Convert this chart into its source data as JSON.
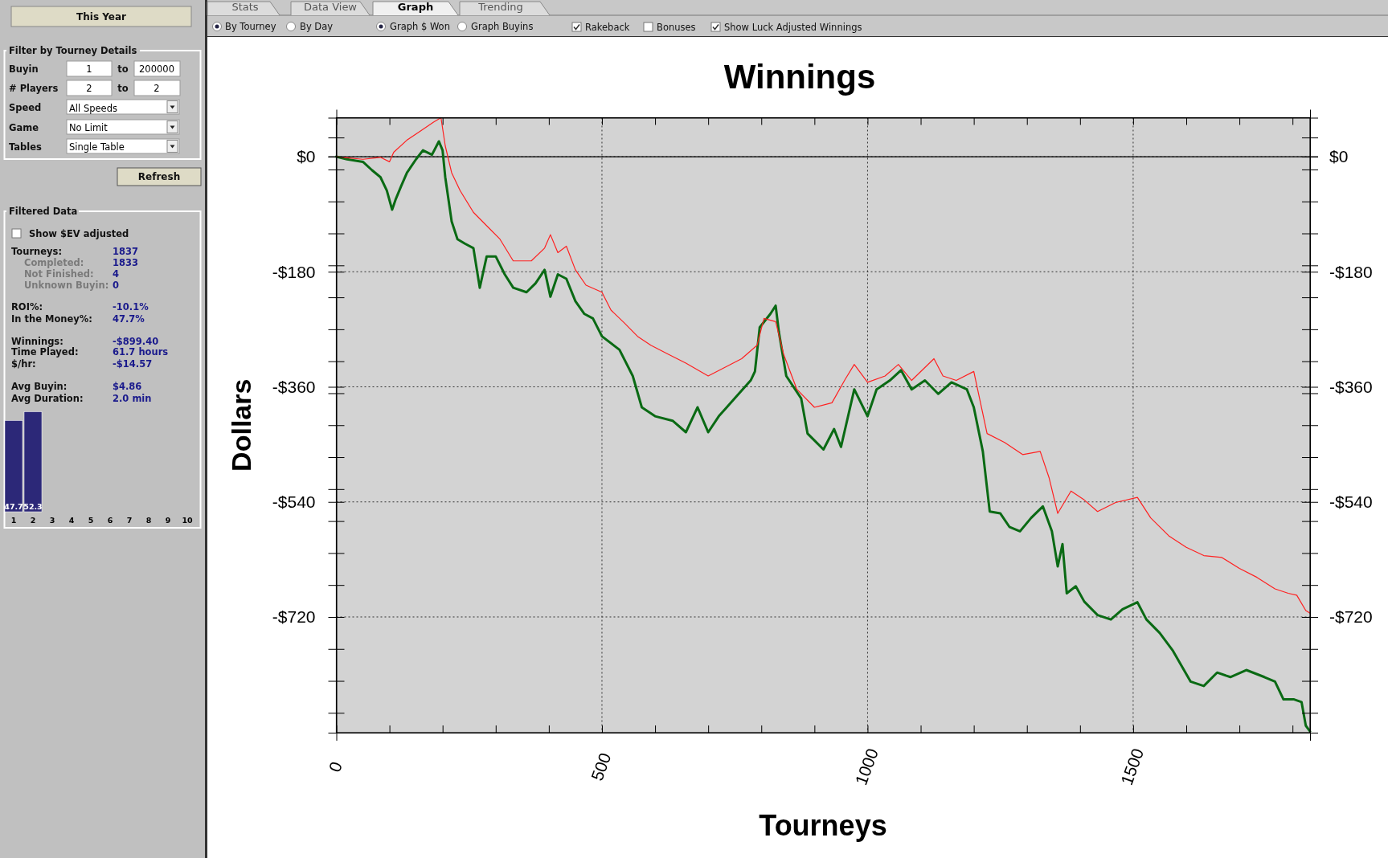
{
  "chart_data": [
    {
      "type": "line",
      "title": "Winnings",
      "xlabel": "Tourneys",
      "ylabel": "Dollars",
      "series": [
        {
          "color": "#0a6a14",
          "x": [
            0,
            20,
            50,
            67,
            83,
            95,
            105,
            112,
            122,
            133,
            150,
            163,
            180,
            193,
            200,
            205,
            217,
            228,
            242,
            258,
            270,
            283,
            300,
            317,
            333,
            358,
            375,
            392,
            403,
            417,
            433,
            450,
            467,
            483,
            500,
            533,
            558,
            575,
            600,
            633,
            658,
            680,
            700,
            720,
            750,
            780,
            788,
            797,
            817,
            827,
            833,
            847,
            875,
            887,
            917,
            937,
            950,
            975,
            1000,
            1017,
            1042,
            1063,
            1083,
            1108,
            1133,
            1158,
            1187,
            1200,
            1217,
            1230,
            1250,
            1267,
            1287,
            1308,
            1330,
            1347,
            1358,
            1367,
            1375,
            1392,
            1408,
            1433,
            1458,
            1480,
            1508,
            1525,
            1550,
            1575,
            1608,
            1633,
            1658,
            1683,
            1713,
            1747,
            1767,
            1783,
            1803,
            1817,
            1825,
            1833
          ],
          "values": [
            0,
            -4,
            -8,
            -21,
            -32,
            -53,
            -83,
            -66,
            -46,
            -25,
            -4,
            10,
            3,
            24,
            10,
            -32,
            -101,
            -129,
            -136,
            -143,
            -205,
            -156,
            -156,
            -184,
            -205,
            -212,
            -198,
            -177,
            -219,
            -184,
            -191,
            -226,
            -246,
            -253,
            -281,
            -302,
            -343,
            -392,
            -406,
            -413,
            -431,
            -392,
            -431,
            -406,
            -378,
            -350,
            -336,
            -267,
            -246,
            -233,
            -274,
            -343,
            -378,
            -433,
            -458,
            -426,
            -454,
            -364,
            -406,
            -364,
            -350,
            -334,
            -364,
            -350,
            -371,
            -353,
            -364,
            -392,
            -461,
            -555,
            -558,
            -579,
            -586,
            -565,
            -547,
            -586,
            -641,
            -606,
            -683,
            -672,
            -696,
            -717,
            -724,
            -708,
            -697,
            -724,
            -745,
            -773,
            -821,
            -828,
            -807,
            -814,
            -803,
            -814,
            -821,
            -849,
            -849,
            -853,
            -890,
            -899
          ]
        },
        {
          "color": "#ff2020",
          "x": [
            0,
            50,
            83,
            100,
            108,
            133,
            158,
            183,
            197,
            205,
            217,
            233,
            258,
            283,
            308,
            333,
            367,
            392,
            403,
            417,
            433,
            450,
            470,
            500,
            517,
            542,
            567,
            592,
            625,
            658,
            700,
            733,
            763,
            792,
            805,
            827,
            842,
            867,
            900,
            933,
            958,
            975,
            1000,
            1033,
            1058,
            1083,
            1125,
            1142,
            1167,
            1200,
            1225,
            1258,
            1292,
            1325,
            1342,
            1358,
            1383,
            1408,
            1433,
            1467,
            1508,
            1533,
            1567,
            1600,
            1633,
            1667,
            1700,
            1733,
            1767,
            1792,
            1808,
            1825,
            1833
          ],
          "values": [
            0,
            -4,
            -1,
            -8,
            7,
            26,
            40,
            54,
            61,
            17,
            -25,
            -53,
            -87,
            -108,
            -129,
            -163,
            -163,
            -143,
            -122,
            -150,
            -140,
            -177,
            -201,
            -212,
            -240,
            -260,
            -281,
            -295,
            -309,
            -323,
            -343,
            -329,
            -316,
            -295,
            -253,
            -258,
            -309,
            -364,
            -392,
            -385,
            -348,
            -325,
            -353,
            -343,
            -325,
            -350,
            -316,
            -343,
            -350,
            -336,
            -433,
            -447,
            -466,
            -461,
            -503,
            -558,
            -523,
            -537,
            -555,
            -541,
            -533,
            -565,
            -593,
            -611,
            -624,
            -627,
            -644,
            -658,
            -676,
            -683,
            -686,
            -710,
            -714
          ]
        }
      ],
      "xlim": [
        0,
        1833
      ],
      "ylim": [
        -901,
        61
      ],
      "xticks": [
        0,
        {
          "value": 100,
          "label": null
        },
        {
          "value": 200,
          "label": null
        },
        {
          "value": 300,
          "label": null
        },
        {
          "value": 400,
          "label": null
        },
        500,
        {
          "value": 600,
          "label": null
        },
        {
          "value": 700,
          "label": null
        },
        {
          "value": 800,
          "label": null
        },
        {
          "value": 900,
          "label": null
        },
        1000,
        {
          "value": 1100,
          "label": null
        },
        {
          "value": 1200,
          "label": null
        },
        {
          "value": 1300,
          "label": null
        },
        {
          "value": 1400,
          "label": null
        },
        1500,
        {
          "value": 1600,
          "label": null
        },
        {
          "value": 1700,
          "label": null
        },
        {
          "value": 1800,
          "label": null
        }
      ],
      "yticks": [
        {
          "value": 30,
          "label": null
        },
        {
          "value": 0,
          "label": "$0"
        },
        {
          "value": -20,
          "label": null
        },
        {
          "value": -70,
          "label": null
        },
        {
          "value": -120,
          "label": null
        },
        {
          "value": -170,
          "label": null
        },
        {
          "value": -180,
          "label": "-$180"
        },
        {
          "value": -220,
          "label": null
        },
        {
          "value": -270,
          "label": null
        },
        {
          "value": -320,
          "label": null
        },
        {
          "value": -360,
          "label": "-$360"
        },
        {
          "value": -370,
          "label": null
        },
        {
          "value": -420,
          "label": null
        },
        {
          "value": -470,
          "label": null
        },
        {
          "value": -520,
          "label": null
        },
        {
          "value": -540,
          "label": "-$540"
        },
        {
          "value": -570,
          "label": null
        },
        {
          "value": -620,
          "label": null
        },
        {
          "value": -670,
          "label": null
        },
        {
          "value": -720,
          "label": "-$720"
        },
        {
          "value": -770,
          "label": null
        },
        {
          "value": -820,
          "label": null
        },
        {
          "value": -870,
          "label": null
        }
      ],
      "y2lim": [
        -901,
        61
      ],
      "y2ticks": [
        {
          "value": 30,
          "label": null
        },
        {
          "value": 0,
          "label": "$0"
        },
        {
          "value": -20,
          "label": null
        },
        {
          "value": -70,
          "label": null
        },
        {
          "value": -120,
          "label": null
        },
        {
          "value": -170,
          "label": null
        },
        {
          "value": -180,
          "label": "-$180"
        },
        {
          "value": -220,
          "label": null
        },
        {
          "value": -270,
          "label": null
        },
        {
          "value": -320,
          "label": null
        },
        {
          "value": -360,
          "label": "-$360"
        },
        {
          "value": -370,
          "label": null
        },
        {
          "value": -420,
          "label": null
        },
        {
          "value": -470,
          "label": null
        },
        {
          "value": -520,
          "label": null
        },
        {
          "value": -540,
          "label": "-$540"
        },
        {
          "value": -570,
          "label": null
        },
        {
          "value": -620,
          "label": null
        },
        {
          "value": -670,
          "label": null
        },
        {
          "value": -720,
          "label": "-$720"
        },
        {
          "value": -770,
          "label": null
        },
        {
          "value": -820,
          "label": null
        },
        {
          "value": -870,
          "label": null
        }
      ],
      "grid": true,
      "ref_lines": [
        {
          "axis": "y",
          "value": 0,
          "color": "#000000"
        }
      ]
    },
    {
      "type": "bar",
      "categories": [
        "1",
        "2",
        "3",
        "4",
        "5",
        "6",
        "7",
        "8",
        "9",
        "10"
      ],
      "values": [
        47.7,
        52.3,
        null,
        null,
        null,
        null,
        null,
        null,
        null,
        null
      ],
      "color": "#2c2878",
      "data_labels": true
    },
    {
      "type": "other",
      "annotations": [
        "Stats",
        "Data View",
        "Graph",
        "Trending",
        "By Tourney",
        "By Day",
        "Graph $ Won",
        "Graph Buyins",
        "Rakeback",
        "Bonuses",
        "Show Luck Adjusted Winnings",
        "This Year",
        "Filter by Tourney Details",
        "Buyin",
        "1",
        "to",
        "200000",
        "# Players",
        "2",
        "to",
        "2",
        "Speed",
        "All Speeds",
        "Game",
        "No Limit",
        "Tables",
        "Single Table",
        "Refresh",
        "Filtered Data",
        "Show $EV adjusted",
        "Tourneys:",
        "1837",
        "Completed:",
        "1833",
        "Not Finished:",
        "4",
        "Unknown Buyin:",
        "0",
        "ROI%:",
        "-10.1%",
        "In the Money%:",
        "47.7%",
        "Winnings:",
        "-$899.40",
        "Time Played:",
        "61.7 hours",
        "$/hr:",
        "-$14.57",
        "Avg Buyin:",
        "$4.86",
        "Avg Duration:",
        "2.0 min"
      ]
    }
  ]
}
